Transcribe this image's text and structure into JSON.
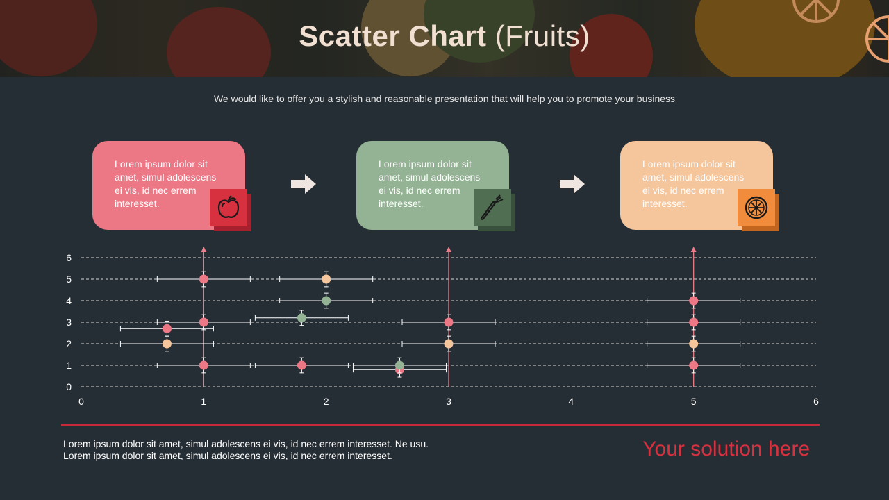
{
  "header": {
    "title_bold": "Scatter Chart",
    "title_rest": "(Fruits)"
  },
  "subtitle": "We would like to offer you a stylish and reasonable presentation that will help you to promote your business",
  "cards": [
    {
      "text": "Lorem ipsum dolor sit amet, simul adolescens ei vis, id nec errem interesset.",
      "icon": "apple-icon",
      "color": "#ec7785",
      "icon_bg": "#d7303f",
      "icon_shadow": "#a8202e"
    },
    {
      "text": "Lorem ipsum dolor sit amet, simul adolescens ei vis, id nec errem interesset.",
      "icon": "carrot-icon",
      "color": "#93b394",
      "icon_bg": "#4f6e52",
      "icon_shadow": "#39503c"
    },
    {
      "text": "Lorem ipsum dolor sit amet, simul adolescens ei vis, id nec errem interesset.",
      "icon": "citrus-icon",
      "color": "#f5c59c",
      "icon_bg": "#f08c3c",
      "icon_shadow": "#c2651f"
    }
  ],
  "chart_data": {
    "type": "scatter",
    "xlim": [
      0,
      6
    ],
    "ylim": [
      0,
      6
    ],
    "x_ticks": [
      "0",
      "1",
      "2",
      "3",
      "4",
      "5",
      "6"
    ],
    "y_ticks": [
      "0",
      "1",
      "2",
      "3",
      "4",
      "5",
      "6"
    ],
    "grid": true,
    "error_bars": true,
    "series": [
      {
        "color": "#ec7785",
        "points": [
          {
            "x": 1,
            "y": 1
          },
          {
            "x": 1,
            "y": 3
          },
          {
            "x": 1,
            "y": 5
          },
          {
            "x": 0.7,
            "y": 2.7
          },
          {
            "x": 1.8,
            "y": 1
          },
          {
            "x": 2.6,
            "y": 0.8
          },
          {
            "x": 3,
            "y": 3
          },
          {
            "x": 5,
            "y": 1
          },
          {
            "x": 5,
            "y": 3
          },
          {
            "x": 5,
            "y": 4
          }
        ]
      },
      {
        "color": "#f5c59c",
        "points": [
          {
            "x": 0.7,
            "y": 2
          },
          {
            "x": 2,
            "y": 5
          },
          {
            "x": 3,
            "y": 2
          },
          {
            "x": 5,
            "y": 2
          }
        ]
      },
      {
        "color": "#93b394",
        "points": [
          {
            "x": 1.8,
            "y": 3.2
          },
          {
            "x": 2,
            "y": 4
          },
          {
            "x": 2.6,
            "y": 1
          }
        ]
      }
    ],
    "reference_lines_x": [
      1,
      3,
      5
    ]
  },
  "footer": {
    "text": "Lorem ipsum dolor sit amet, simul adolescens ei vis, id nec errem interesset. Ne usu. Lorem ipsum dolor sit amet, simul adolescens ei vis, id nec errem interesset.",
    "solution": "Your solution here"
  },
  "colors": {
    "background": "#262e35",
    "accent_red": "#d7303f",
    "reference_line": "#e87e8a"
  }
}
